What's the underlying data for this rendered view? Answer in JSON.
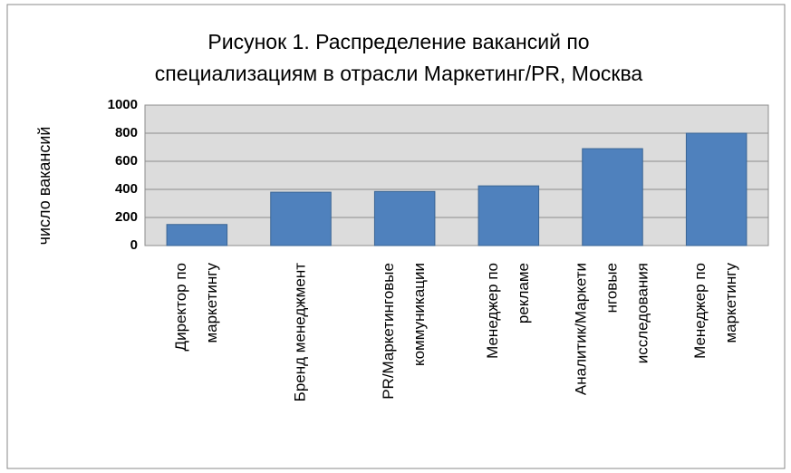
{
  "chart_data": {
    "type": "bar",
    "title": [
      "Рисунок 1. Распределение вакансий  по",
      "специализациям в отрасли Маркетинг/PR, Москва"
    ],
    "y_label": "число    вакансий",
    "categories": [
      [
        "Директор по",
        "маркетингу"
      ],
      [
        "Бренд менеджмент"
      ],
      [
        "PR/Маркетинговые",
        "коммуникации"
      ],
      [
        "Менеджер по",
        "рекламе"
      ],
      [
        "Аналитик/Маркети",
        "нговые",
        "исследования"
      ],
      [
        "Менеджер по",
        "маркетингу"
      ]
    ],
    "values": [
      150,
      380,
      385,
      425,
      690,
      800
    ],
    "color": "#4f81bd",
    "ylim": [
      0,
      1000
    ],
    "yticks": [
      0,
      200,
      400,
      600,
      800,
      1000
    ],
    "grid": true
  }
}
